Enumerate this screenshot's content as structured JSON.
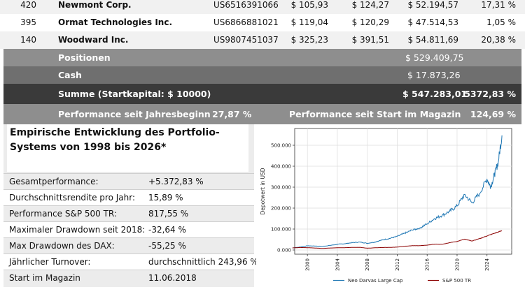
{
  "holdings": [
    {
      "shares": "420",
      "name": "Newmont Corp.",
      "isin": "US6516391066",
      "buy": "$ 105,93",
      "current": "$ 124,27",
      "value": "$ 52.194,57",
      "pct": "17,31 %"
    },
    {
      "shares": "395",
      "name": "Ormat Technologies Inc.",
      "isin": "US6866881021",
      "buy": "$ 119,04",
      "current": "$ 120,29",
      "value": "$ 47.514,53",
      "pct": "1,05 %"
    },
    {
      "shares": "140",
      "name": "Woodward Inc.",
      "isin": "US9807451037",
      "buy": "$ 325,23",
      "current": "$ 391,51",
      "value": "$ 54.811,69",
      "pct": "20,38 %"
    }
  ],
  "summary": {
    "positions_label": "Positionen",
    "positions_value": "$ 529.409,75",
    "cash_label": "Cash",
    "cash_value": "$ 17.873,26",
    "total_label": "Summe (Startkapital: $ 10000)",
    "total_value": "$ 547.283,01",
    "total_pct": "5372,83 %",
    "perf_ytd_label": "Performance seit Jahresbeginn",
    "perf_ytd_value": "27,87 %",
    "perf_start_label": "Performance seit Start im Magazin",
    "perf_start_value": "124,69 %"
  },
  "stats": {
    "title": "Empirische Entwicklung des Portfolio-Systems von 1998 bis 2026*",
    "rows": [
      {
        "key": "Gesamtperformance:",
        "value": "+5.372,83 %"
      },
      {
        "key": "Durchschnittsrendite pro Jahr:",
        "value": "15,89 %"
      },
      {
        "key": "Performance S&P 500 TR:",
        "value": "817,55 %"
      },
      {
        "key": "Maximaler Drawdown seit 2018:",
        "value": "-32,64 %"
      },
      {
        "key": "Max Drawdown des DAX:",
        "value": "-55,25 %"
      },
      {
        "key": "Jährlicher Turnover:",
        "value": "durchschnittlich 243,96 %"
      },
      {
        "key": "Start im Magazin",
        "value": "11.06.2018"
      }
    ]
  },
  "chart_data": {
    "type": "line",
    "title": "",
    "xlabel": "",
    "ylabel": "Depotwert in USD",
    "xlim": [
      1998.3,
      2027.3
    ],
    "ylim": [
      -20000,
      580000
    ],
    "x_ticks": [
      "2000",
      "2004",
      "2008",
      "2012",
      "2016",
      "2020",
      "2024"
    ],
    "y_ticks": [
      "0.000",
      "100.000",
      "200.000",
      "300.000",
      "400.000",
      "500.000"
    ],
    "grid": true,
    "legend_position": "bottom",
    "series": [
      {
        "name": "Neo Darvas Large Cap",
        "color": "#1f77b4",
        "x": [
          1998,
          1999,
          2000,
          2001,
          2002,
          2003,
          2004,
          2005,
          2006,
          2007,
          2008,
          2009,
          2010,
          2011,
          2012,
          2013,
          2014,
          2015,
          2016,
          2017,
          2018,
          2019,
          2020,
          2021,
          2022,
          2023,
          2024,
          2024.5,
          2025,
          2025.5,
          2026
        ],
        "y": [
          10000,
          14000,
          20000,
          19000,
          17000,
          22000,
          27000,
          30000,
          35000,
          38000,
          32000,
          38000,
          48000,
          55000,
          65000,
          80000,
          95000,
          105000,
          125000,
          150000,
          165000,
          185000,
          210000,
          265000,
          225000,
          270000,
          340000,
          300000,
          360000,
          420000,
          547000
        ]
      },
      {
        "name": "S&P 500 TR",
        "color": "#8b0000",
        "x": [
          1998,
          1999,
          2000,
          2001,
          2002,
          2003,
          2004,
          2005,
          2006,
          2007,
          2008,
          2009,
          2010,
          2011,
          2012,
          2013,
          2014,
          2015,
          2016,
          2017,
          2018,
          2019,
          2020,
          2021,
          2022,
          2023,
          2024,
          2025,
          2026
        ],
        "y": [
          10000,
          12000,
          11000,
          9500,
          7500,
          9500,
          10500,
          11000,
          12500,
          13000,
          8500,
          10500,
          12000,
          12200,
          14000,
          18000,
          20500,
          20800,
          23000,
          28000,
          27000,
          35000,
          41000,
          52000,
          43000,
          54000,
          67000,
          80000,
          92000
        ]
      }
    ]
  }
}
